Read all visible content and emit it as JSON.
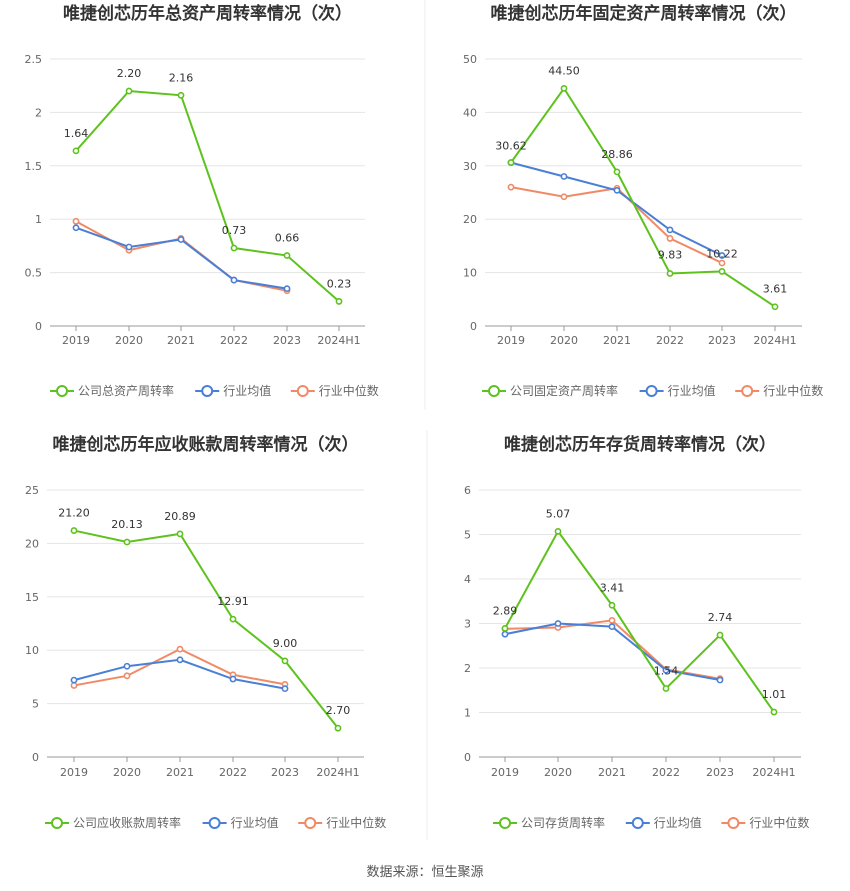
{
  "page": {
    "source": "数据来源：恒生聚源"
  },
  "colors": {
    "company": "#5ec21e",
    "avg": "#4a7fd6",
    "median": "#f08a66",
    "grid": "#e5e5e5",
    "axis": "#999999",
    "divider": "#eeeeee"
  },
  "chart_data": [
    {
      "type": "line",
      "title": "唯捷创芯历年总资产周转率情况（次）",
      "categories": [
        "2019",
        "2020",
        "2021",
        "2022",
        "2023",
        "2024H1"
      ],
      "ylim": [
        0,
        2.5
      ],
      "yticks": [
        "0",
        "0.5",
        "1",
        "1.5",
        "2",
        "2.5"
      ],
      "grid": true,
      "legend_position": "bottom",
      "series": [
        {
          "name": "公司总资产周转率",
          "role": "company",
          "values": [
            1.64,
            2.2,
            2.16,
            0.73,
            0.66,
            0.23
          ],
          "labels": [
            "1.64",
            "2.20",
            "2.16",
            "0.73",
            "0.66",
            "0.23"
          ]
        },
        {
          "name": "行业均值",
          "role": "avg",
          "values": [
            0.92,
            0.74,
            0.81,
            0.43,
            0.35,
            null
          ]
        },
        {
          "name": "行业中位数",
          "role": "median",
          "values": [
            0.98,
            0.71,
            0.82,
            0.43,
            0.33,
            null
          ]
        }
      ]
    },
    {
      "type": "line",
      "title": "唯捷创芯历年固定资产周转率情况（次）",
      "categories": [
        "2019",
        "2020",
        "2021",
        "2022",
        "2023",
        "2024H1"
      ],
      "ylim": [
        0,
        50
      ],
      "yticks": [
        "0",
        "10",
        "20",
        "30",
        "40",
        "50"
      ],
      "grid": true,
      "legend_position": "bottom",
      "series": [
        {
          "name": "公司固定资产周转率",
          "role": "company",
          "values": [
            30.62,
            44.5,
            28.86,
            9.83,
            10.22,
            3.61
          ],
          "labels": [
            "30.62",
            "44.50",
            "28.86",
            "9.83",
            "10.22",
            "3.61"
          ]
        },
        {
          "name": "行业均值",
          "role": "avg",
          "values": [
            30.6,
            28.0,
            25.4,
            18.0,
            13.2,
            null
          ]
        },
        {
          "name": "行业中位数",
          "role": "median",
          "values": [
            26.0,
            24.2,
            25.8,
            16.4,
            11.8,
            null
          ]
        }
      ]
    },
    {
      "type": "line",
      "title": "唯捷创芯历年应收账款周转率情况（次）",
      "categories": [
        "2019",
        "2020",
        "2021",
        "2022",
        "2023",
        "2024H1"
      ],
      "ylim": [
        0,
        25
      ],
      "yticks": [
        "0",
        "5",
        "10",
        "15",
        "20",
        "25"
      ],
      "grid": true,
      "legend_position": "bottom",
      "series": [
        {
          "name": "公司应收账款周转率",
          "role": "company",
          "values": [
            21.2,
            20.13,
            20.89,
            12.91,
            9.0,
            2.7
          ],
          "labels": [
            "21.20",
            "20.13",
            "20.89",
            "12.91",
            "9.00",
            "2.70"
          ]
        },
        {
          "name": "行业均值",
          "role": "avg",
          "values": [
            7.2,
            8.5,
            9.1,
            7.3,
            6.4,
            null
          ]
        },
        {
          "name": "行业中位数",
          "role": "median",
          "values": [
            6.7,
            7.6,
            10.1,
            7.7,
            6.8,
            null
          ]
        }
      ]
    },
    {
      "type": "line",
      "title": "唯捷创芯历年存货周转率情况（次）",
      "categories": [
        "2019",
        "2020",
        "2021",
        "2022",
        "2023",
        "2024H1"
      ],
      "ylim": [
        0,
        6
      ],
      "yticks": [
        "0",
        "1",
        "2",
        "3",
        "4",
        "5",
        "6"
      ],
      "grid": true,
      "legend_position": "bottom",
      "series": [
        {
          "name": "公司存货周转率",
          "role": "company",
          "values": [
            2.89,
            5.07,
            3.41,
            1.54,
            2.74,
            1.01
          ],
          "labels": [
            "2.89",
            "5.07",
            "3.41",
            "1.54",
            "2.74",
            "1.01"
          ]
        },
        {
          "name": "行业均值",
          "role": "avg",
          "values": [
            2.76,
            3.0,
            2.93,
            1.95,
            1.73,
            null
          ]
        },
        {
          "name": "行业中位数",
          "role": "median",
          "values": [
            2.88,
            2.91,
            3.07,
            1.97,
            1.76,
            null
          ]
        }
      ]
    }
  ]
}
